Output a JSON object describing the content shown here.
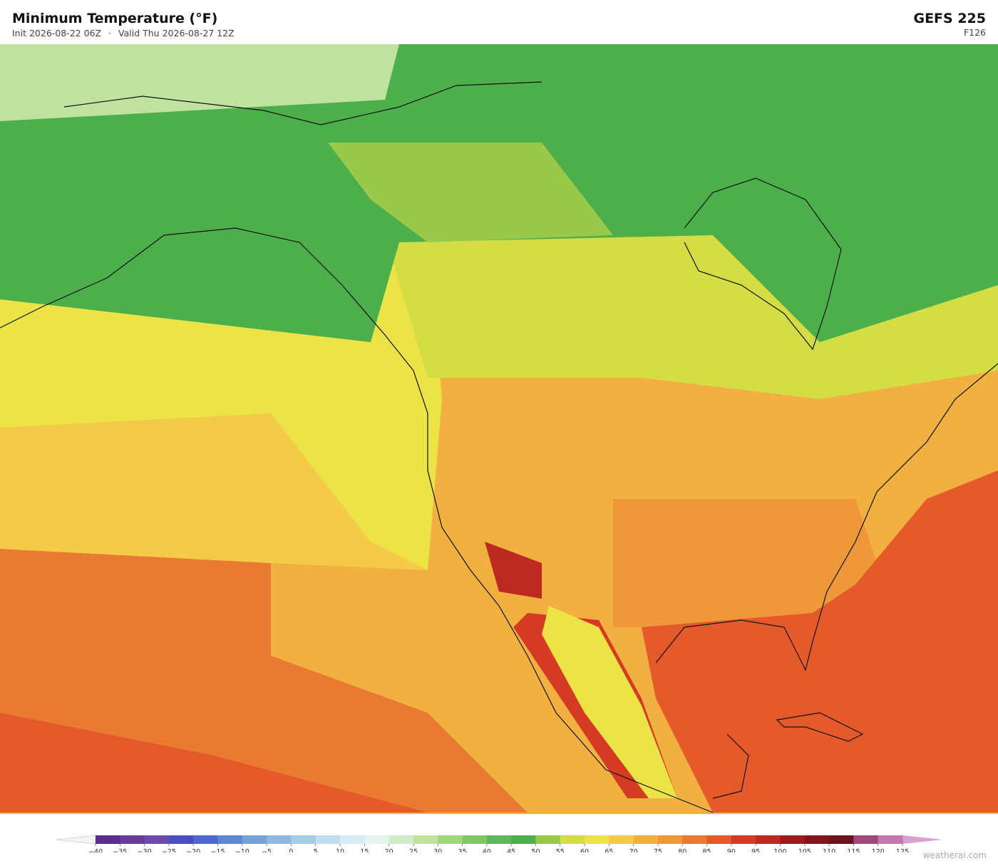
{
  "header": {
    "title": "Minimum Temperature  (°F)",
    "init": "Init 2026-08-22 06Z",
    "separator": "·",
    "valid": "Valid Thu 2026-08-27 12Z",
    "model": "GEFS  225",
    "forecast_hour": "F126"
  },
  "colorbar": {
    "ticks": [
      {
        "value": -40,
        "label": "−40"
      },
      {
        "value": -35,
        "label": "−35"
      },
      {
        "value": -30,
        "label": "−30"
      },
      {
        "value": -25,
        "label": "−25"
      },
      {
        "value": -20,
        "label": "−20"
      },
      {
        "value": -15,
        "label": "−15"
      },
      {
        "value": -10,
        "label": "−10"
      },
      {
        "value": -5,
        "label": "−5"
      },
      0,
      5,
      10,
      15,
      20,
      25,
      30,
      35,
      40,
      45,
      50,
      55,
      60,
      65,
      70,
      75,
      80,
      85,
      90,
      95,
      100,
      105,
      110,
      115,
      120,
      125
    ],
    "colors": [
      "#5b2d8e",
      "#6a3d9a",
      "#6f4bb0",
      "#4a4fc0",
      "#4f66cc",
      "#5f86d2",
      "#78a1d8",
      "#8fb8e0",
      "#a6cde8",
      "#c0def0",
      "#d8ecf4",
      "#e6f4ec",
      "#d3ecc8",
      "#bfe29e",
      "#a0d67c",
      "#80c864",
      "#5cb85a",
      "#4caf4c",
      "#98c94a",
      "#d4dd44",
      "#ece346",
      "#f3cb48",
      "#f2b040",
      "#ee983a",
      "#ea7a32",
      "#e45a2a",
      "#d53a24",
      "#bd2a22",
      "#9c1c20",
      "#80161c",
      "#6b1420",
      "#a04a7a",
      "#c277ad"
    ],
    "under_color": "#f4f4f4",
    "over_color": "#d9a0cc"
  },
  "footer": {
    "watermark": "weatherai.com"
  }
}
